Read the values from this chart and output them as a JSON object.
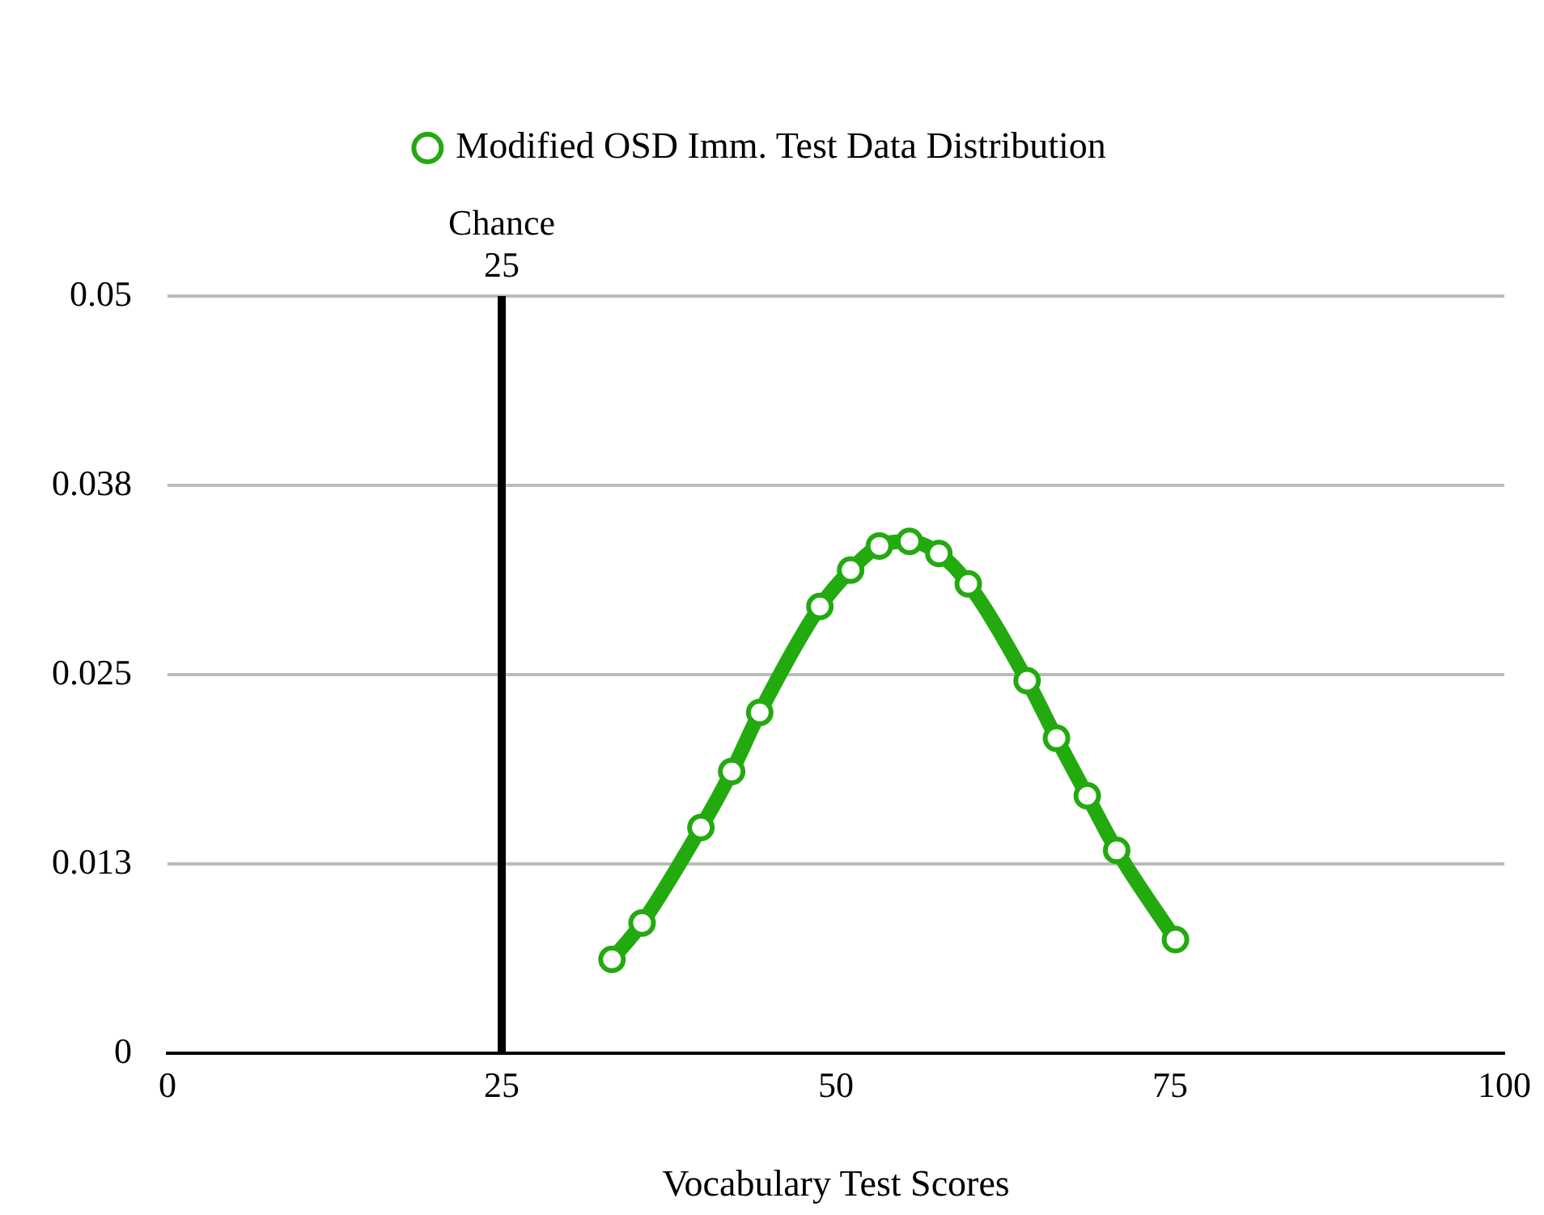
{
  "chart_data": {
    "type": "line",
    "xlabel": "Vocabulary Test Scores",
    "series": [
      {
        "name": "Modified OSD Imm. Test Data Distribution",
        "color": "#22aa0f",
        "x": [
          33.25,
          35.5,
          39.9,
          42.2,
          44.3,
          48.8,
          51.1,
          53.25,
          55.5,
          57.7,
          59.9,
          64.3,
          66.5,
          68.8,
          71.0,
          75.4
        ],
        "values": [
          0.0062,
          0.0086,
          0.0149,
          0.0186,
          0.0225,
          0.0295,
          0.0319,
          0.0335,
          0.0338,
          0.033,
          0.031,
          0.0246,
          0.0208,
          0.017,
          0.0134,
          0.0075
        ]
      }
    ],
    "xlim": [
      0,
      100
    ],
    "xticks": [
      0,
      25,
      50,
      75,
      100
    ],
    "ylim": [
      0,
      0.05
    ],
    "yticks": [
      0,
      {
        "value": 0.0125,
        "label": "0.013"
      },
      0.025,
      {
        "value": 0.0375,
        "label": "0.038"
      },
      0.05
    ],
    "ref_lines": [
      {
        "axis": "x",
        "value": 25,
        "label": "Chance\n25",
        "color": "#000000"
      }
    ],
    "grid": "y",
    "legend": "top",
    "marker": "circle",
    "line_style": "solid"
  }
}
